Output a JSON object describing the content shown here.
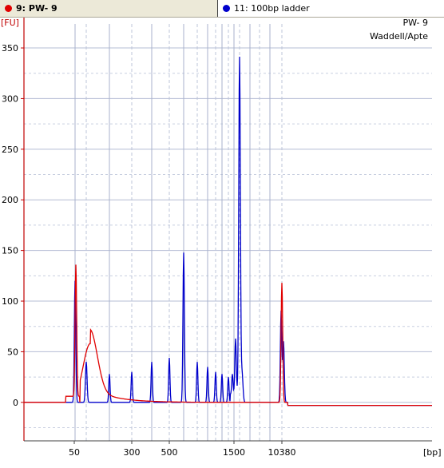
{
  "tabs": [
    {
      "label": "9: PW- 9",
      "dot_color": "#e00000"
    },
    {
      "label": "11: 100bp ladder",
      "dot_color": "#0000cc"
    }
  ],
  "chart_data": {
    "type": "line",
    "ylabel": "[FU]",
    "xlabel": "[bp]",
    "annotation_lines": [
      "PW- 9",
      "Waddell/Apte"
    ],
    "ylim": [
      -38,
      380
    ],
    "y_ticks": [
      0,
      50,
      100,
      150,
      200,
      250,
      300,
      350
    ],
    "x_tick_labels": [
      "50",
      "300",
      "500",
      "1500",
      "10380"
    ],
    "grid": true,
    "series": [
      {
        "name": "9: PW- 9",
        "color": "#e00000"
      },
      {
        "name": "11: 100bp ladder",
        "color": "#0000cc"
      }
    ]
  }
}
